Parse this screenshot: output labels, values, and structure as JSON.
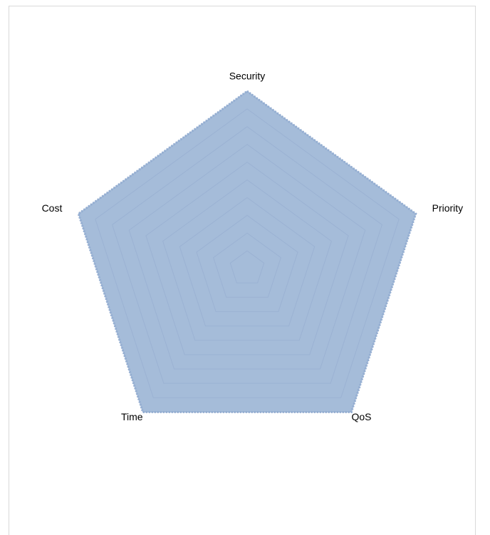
{
  "chart_data": {
    "type": "radar",
    "categories": [
      "Security",
      "Priority",
      "QoS",
      "Time",
      "Cost"
    ],
    "series": [
      {
        "color": "#a5bcd9",
        "values": [
          10,
          10,
          10,
          10,
          10
        ]
      }
    ],
    "rlim": [
      0,
      10
    ],
    "rticks": [
      1,
      2,
      3,
      4,
      5,
      6,
      7,
      8,
      9,
      10
    ],
    "grid": true
  }
}
